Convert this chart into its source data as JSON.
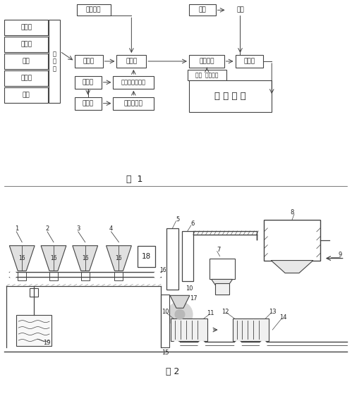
{
  "bg_color": "#ffffff",
  "line_color": "#444444",
  "text_color": "#222222",
  "fig1_caption": "图  1",
  "fig2_caption": "图 2",
  "raw_materials": [
    "石膏粉",
    "粉煤灰",
    "水渣",
    "珍珠岩",
    "水泥"
  ],
  "pibandai_text": "皮\n带\n秤",
  "boxes_fig1": {
    "tjjk": "添加剂库",
    "pdj": "皮带机",
    "jbj": "搅拌机",
    "ylc": "原料仓",
    "jbylkc": "聚苯乙烯颗粒仓",
    "fpj": "发泡机",
    "ycfpc": "一次发泡仓",
    "sb": "水泵",
    "yh": "养护",
    "mzh": "模具组合",
    "qyc": "切裁场",
    "mj": "模具  维行板库",
    "cpck": "成 品 仓 库"
  }
}
